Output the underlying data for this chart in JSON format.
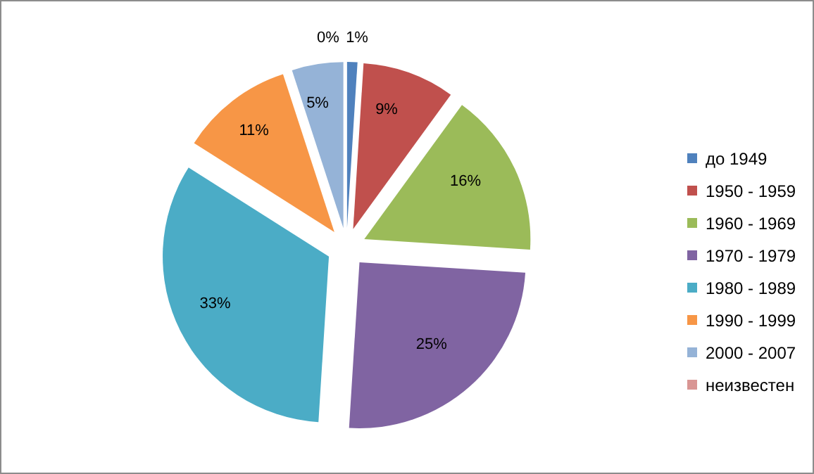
{
  "chart_data": {
    "type": "pie",
    "categories": [
      "до 1949",
      "1950 - 1959",
      "1960 - 1969",
      "1970 - 1979",
      "1980 - 1989",
      "1990 - 1999",
      "2000 - 2007",
      "неизвестен"
    ],
    "values": [
      1,
      9,
      16,
      25,
      33,
      11,
      5,
      0
    ],
    "value_labels": [
      "1%",
      "9%",
      "16%",
      "25%",
      "33%",
      "11%",
      "5%",
      "0%"
    ],
    "colors": [
      "#4f81bd",
      "#c0504d",
      "#9bbb59",
      "#8064a2",
      "#4bacc6",
      "#f79646",
      "#95b3d7",
      "#d99694"
    ],
    "legend": "right"
  }
}
